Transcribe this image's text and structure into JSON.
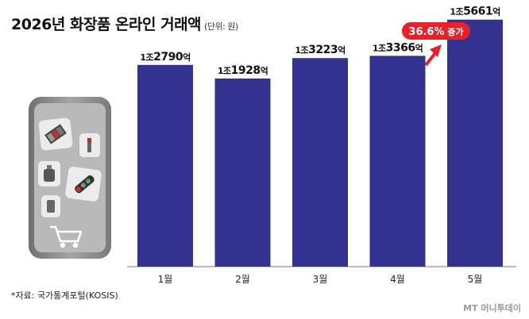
{
  "title": "2026년 화장품 온라인 거래액",
  "unit": "(단위: 원)",
  "source": "*자료: 국가통계포털(KOSIS)",
  "watermark": "MT 머니투데이",
  "annotation": {
    "text_bold": "36.6%",
    "text_rest": " 증가",
    "color": "#e8202a"
  },
  "colors": {
    "bar": "#33338f",
    "phone": "#8a8a8a",
    "tile": "#e9e9e9"
  },
  "chart_data": {
    "type": "bar",
    "categories": [
      "1월",
      "2월",
      "3월",
      "4월",
      "5월"
    ],
    "values": [
      12790,
      11928,
      13223,
      13366,
      15661
    ],
    "value_labels": [
      {
        "pre": "1조",
        "num": "2790",
        "post": "억"
      },
      {
        "pre": "1조",
        "num": "1928",
        "post": "억"
      },
      {
        "pre": "1조",
        "num": "3223",
        "post": "억"
      },
      {
        "pre": "1조",
        "num": "3366",
        "post": "억"
      },
      {
        "pre": "1조",
        "num": "5661",
        "post": "억"
      }
    ],
    "ylim": [
      0,
      16000
    ],
    "grid": false,
    "legend": "none"
  }
}
